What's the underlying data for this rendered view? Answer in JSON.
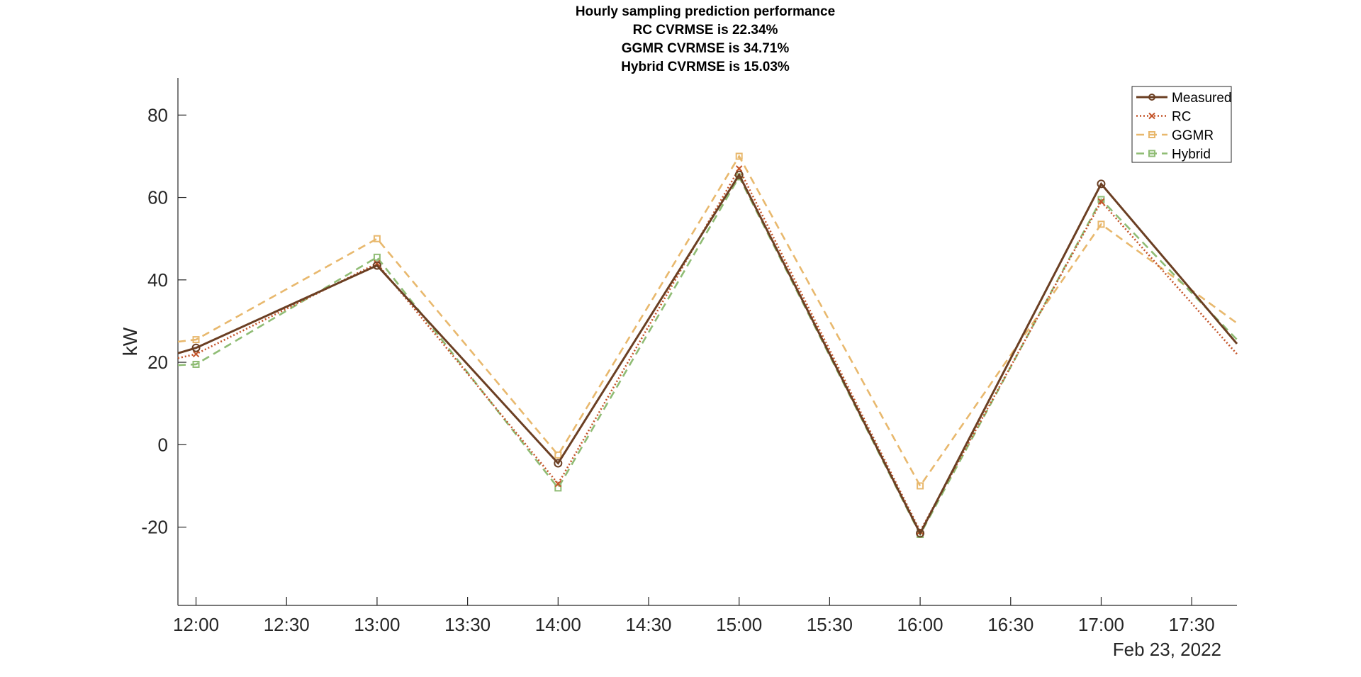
{
  "chart_data": {
    "type": "line",
    "title_lines": [
      "Hourly sampling prediction performance",
      "RC CVRMSE is 22.34%",
      "GGMR CVRMSE is 34.71%",
      "Hybrid CVRMSE is 15.03%"
    ],
    "ylabel": "kW",
    "xlabel": "",
    "date_label": "Feb 23, 2022",
    "xlim": [
      "11:54",
      "17:45"
    ],
    "ylim": [
      -39,
      89
    ],
    "y_ticks": [
      -20,
      0,
      20,
      40,
      60,
      80
    ],
    "x_ticks": [
      "12:00",
      "12:30",
      "13:00",
      "13:30",
      "14:00",
      "14:30",
      "15:00",
      "15:30",
      "16:00",
      "16:30",
      "17:00",
      "17:30"
    ],
    "grid": false,
    "legend_position": "top-right",
    "series": [
      {
        "name": "Measured",
        "color": "#6b3f23",
        "style": "solid",
        "marker": "circle",
        "x": [
          "11:54",
          "12:00",
          "13:00",
          "14:00",
          "15:00",
          "16:00",
          "17:00",
          "17:45"
        ],
        "y": [
          22.2,
          23.5,
          43.5,
          -4.5,
          65.5,
          -21.5,
          63.3,
          24.5
        ]
      },
      {
        "name": "RC",
        "color": "#c4552a",
        "style": "dotted",
        "marker": "x",
        "x": [
          "11:54",
          "12:00",
          "13:00",
          "14:00",
          "15:00",
          "16:00",
          "17:00",
          "17:45"
        ],
        "y": [
          21.0,
          22.0,
          44.0,
          -9.5,
          67.0,
          -21.0,
          59.0,
          22.0
        ]
      },
      {
        "name": "GGMR",
        "color": "#e8b86d",
        "style": "dashed",
        "marker": "square",
        "x": [
          "11:54",
          "12:00",
          "13:00",
          "14:00",
          "15:00",
          "16:00",
          "17:00",
          "17:45"
        ],
        "y": [
          25.0,
          25.5,
          50.0,
          -2.5,
          70.0,
          -10.0,
          53.5,
          29.5
        ]
      },
      {
        "name": "Hybrid",
        "color": "#8fbc74",
        "style": "dashed",
        "marker": "square",
        "x": [
          "11:54",
          "12:00",
          "13:00",
          "14:00",
          "15:00",
          "16:00",
          "17:00",
          "17:45"
        ],
        "y": [
          19.3,
          19.5,
          45.5,
          -10.5,
          65.0,
          -21.8,
          59.5,
          25.5
        ]
      }
    ]
  }
}
